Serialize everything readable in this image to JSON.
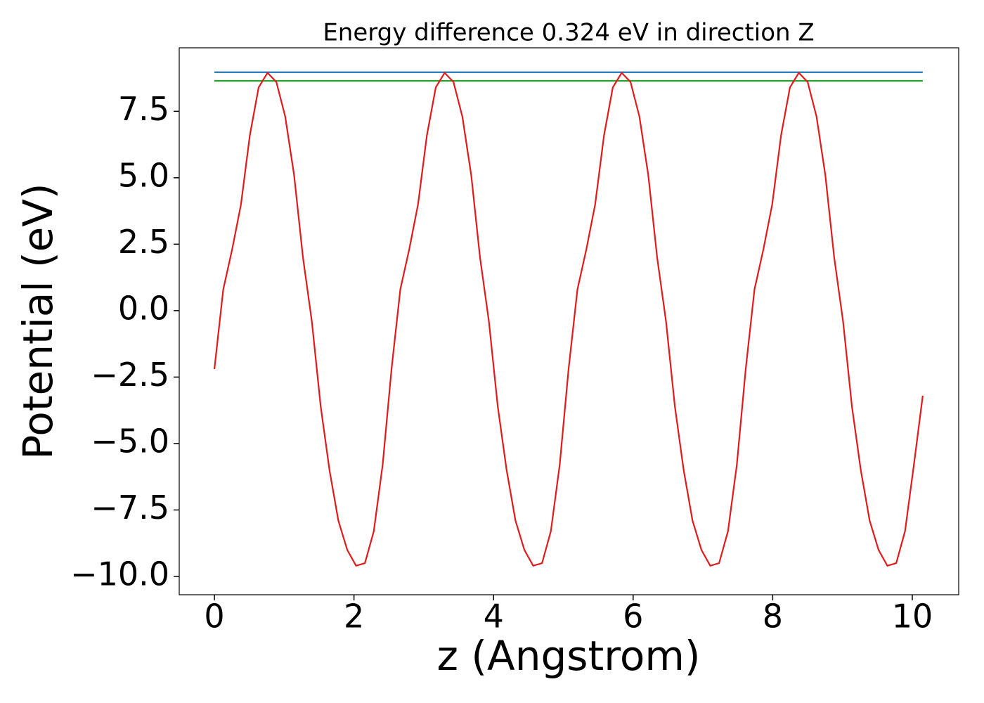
{
  "chart_data": {
    "type": "line",
    "title": "Energy difference 0.324 eV in direction Z",
    "xlabel": "z (Angstrom)",
    "ylabel": "Potential (eV)",
    "xlim": [
      -0.504,
      10.665
    ],
    "ylim": [
      -10.69,
      9.89
    ],
    "xticks": [
      0,
      2,
      4,
      6,
      8,
      10
    ],
    "yticks": [
      {
        "value": -10,
        "label": "−10.0"
      },
      {
        "value": -7.5,
        "label": "−7.5"
      },
      {
        "value": -5,
        "label": "−5.0"
      },
      {
        "value": -2.5,
        "label": "−2.5"
      },
      {
        "value": 0,
        "label": "0.0"
      },
      2.5,
      {
        "value": 5,
        "label": "5.0"
      },
      7.5
    ],
    "grid": false,
    "series": [
      {
        "color": "#1f77b4",
        "x": [
          0,
          10.15
        ],
        "values": [
          8.97,
          8.97
        ]
      },
      {
        "color": "#2ca02c",
        "x": [
          0,
          10.15
        ],
        "values": [
          8.646,
          8.646
        ]
      },
      {
        "color": "#e31a1c",
        "x": [
          0,
          0.127,
          0.254,
          0.381,
          0.508,
          0.634,
          0.761,
          0.888,
          1.015,
          1.142,
          1.269,
          1.396,
          1.523,
          1.649,
          1.776,
          1.903,
          2.03,
          2.157,
          2.284,
          2.411,
          2.538,
          2.664,
          2.791,
          2.918,
          3.045,
          3.172,
          3.299,
          3.426,
          3.553,
          3.68,
          3.806,
          3.933,
          4.06,
          4.187,
          4.314,
          4.441,
          4.568,
          4.695,
          4.821,
          4.948,
          5.075,
          5.202,
          5.329,
          5.456,
          5.583,
          5.709,
          5.836,
          5.963,
          6.09,
          6.217,
          6.344,
          6.471,
          6.598,
          6.724,
          6.851,
          6.978,
          7.105,
          7.232,
          7.359,
          7.486,
          7.613,
          7.739,
          7.866,
          7.993,
          8.12,
          8.247,
          8.374,
          8.501,
          8.628,
          8.754,
          8.881,
          9.008,
          9.135,
          9.262,
          9.389,
          9.516,
          9.643,
          9.77,
          9.896,
          10.023,
          10.15
        ],
        "values": [
          -2.2,
          0.8,
          2.3,
          4.0,
          6.6,
          8.4,
          8.95,
          8.6,
          7.3,
          5.1,
          2.0,
          -0.4,
          -3.6,
          -6.0,
          -7.9,
          -9.0,
          -9.6,
          -9.5,
          -8.3,
          -5.8,
          -2.2,
          0.8,
          2.3,
          4.0,
          6.6,
          8.4,
          8.95,
          8.6,
          7.3,
          5.1,
          2.0,
          -0.4,
          -3.6,
          -6.0,
          -7.9,
          -9.0,
          -9.6,
          -9.5,
          -8.3,
          -5.8,
          -2.2,
          0.8,
          2.3,
          4.0,
          6.6,
          8.4,
          8.95,
          8.6,
          7.3,
          5.1,
          2.0,
          -0.4,
          -3.6,
          -6.0,
          -7.9,
          -9.0,
          -9.6,
          -9.5,
          -8.3,
          -5.8,
          -2.2,
          0.8,
          2.3,
          4.0,
          6.6,
          8.4,
          8.95,
          8.6,
          7.3,
          5.1,
          2.0,
          -0.4,
          -3.6,
          -6.0,
          -7.9,
          -9.0,
          -9.6,
          -9.5,
          -8.3,
          -5.8,
          -3.2
        ]
      }
    ]
  }
}
